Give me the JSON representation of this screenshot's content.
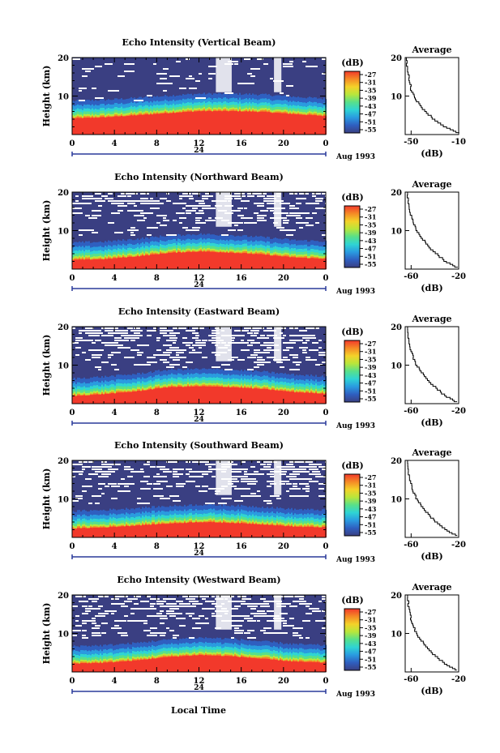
{
  "figure": {
    "bottom_label": "Local Time",
    "colorbar_unit": "(dB)",
    "colorbar_ticks": [
      "-27",
      "-31",
      "-35",
      "-39",
      "-43",
      "-47",
      "-51",
      "-55"
    ],
    "date_label": "Aug 1993",
    "day_label": "24",
    "avg_title": "Average",
    "avg_xlabel": "(dB)",
    "colors": {
      "background_noise": "#3a3f82",
      "surface_layer": "#f2392b",
      "gap": "#ffffff",
      "colormap": [
        "#3a3f82",
        "#2f5fc0",
        "#2a9be0",
        "#2fd4d4",
        "#58e08a",
        "#b8e63b",
        "#f4d229",
        "#f58a26",
        "#f2392b"
      ]
    }
  },
  "chart_data": [
    {
      "type": "heatmap",
      "title": "Echo Intensity (Vertical Beam)",
      "ylabel": "Height (km)",
      "xlabel": "Local Time",
      "x_ticks": [
        "0",
        "4",
        "8",
        "12",
        "16",
        "20",
        "0"
      ],
      "y_ticks": [
        "20",
        "10"
      ],
      "xlim": [
        0,
        24
      ],
      "ylim": [
        0,
        20
      ],
      "colorbar_range_db": [
        -55,
        -27
      ],
      "surface_layer_top_km": [
        4.2,
        4.5,
        5.0,
        5.6,
        6.1,
        6.1,
        5.9,
        5.3,
        4.8
      ],
      "average_profile": {
        "title": "Average",
        "xlabel": "(dB)",
        "x_ticks": [
          "-50",
          "-10"
        ],
        "y_ticks": [
          "20",
          "10"
        ],
        "xlim": [
          -55,
          -10
        ],
        "ylim": [
          0,
          20
        ],
        "height_km": [
          20,
          17,
          14,
          12,
          10,
          8,
          6,
          4,
          2,
          0.5
        ],
        "db": [
          -54,
          -53,
          -51,
          -50,
          -47,
          -43,
          -37,
          -30,
          -20,
          -10
        ]
      }
    },
    {
      "type": "heatmap",
      "title": "Echo Intensity (Northward Beam)",
      "ylabel": "Height (km)",
      "xlabel": "Local Time",
      "x_ticks": [
        "0",
        "4",
        "8",
        "12",
        "16",
        "20",
        "0"
      ],
      "y_ticks": [
        "20",
        "10"
      ],
      "xlim": [
        0,
        24
      ],
      "ylim": [
        0,
        20
      ],
      "colorbar_range_db": [
        -55,
        -27
      ],
      "surface_layer_top_km": [
        2.4,
        2.6,
        3.3,
        4.2,
        4.6,
        4.3,
        3.8,
        3.0,
        2.7
      ],
      "average_profile": {
        "title": "Average",
        "xlabel": "(dB)",
        "x_ticks": [
          "-60",
          "-20"
        ],
        "y_ticks": [
          "20",
          "10"
        ],
        "xlim": [
          -65,
          -20
        ],
        "ylim": [
          0,
          20
        ],
        "height_km": [
          20,
          17,
          14,
          12,
          10,
          8,
          6,
          4,
          2,
          0.5
        ],
        "db": [
          -63,
          -62,
          -60,
          -58,
          -55,
          -50,
          -45,
          -38,
          -30,
          -21
        ]
      }
    },
    {
      "type": "heatmap",
      "title": "Echo Intensity (Eastward Beam)",
      "ylabel": "Height (km)",
      "xlabel": "Local Time",
      "x_ticks": [
        "0",
        "4",
        "8",
        "12",
        "16",
        "20",
        "0"
      ],
      "y_ticks": [
        "20",
        "10"
      ],
      "xlim": [
        0,
        24
      ],
      "ylim": [
        0,
        20
      ],
      "colorbar_range_db": [
        -55,
        -27
      ],
      "surface_layer_top_km": [
        2.0,
        2.5,
        3.2,
        4.3,
        4.5,
        4.3,
        3.8,
        3.0,
        2.6
      ],
      "average_profile": {
        "title": "Average",
        "xlabel": "(dB)",
        "x_ticks": [
          "-60",
          "-20"
        ],
        "y_ticks": [
          "20",
          "10"
        ],
        "xlim": [
          -65,
          -20
        ],
        "ylim": [
          0,
          20
        ],
        "height_km": [
          20,
          17,
          14,
          12,
          10,
          8,
          6,
          4,
          2,
          0.5
        ],
        "db": [
          -63,
          -62,
          -60,
          -58,
          -55,
          -50,
          -45,
          -38,
          -30,
          -21
        ]
      }
    },
    {
      "type": "heatmap",
      "title": "Echo Intensity (Southward Beam)",
      "ylabel": "Height (km)",
      "xlabel": "Local Time",
      "x_ticks": [
        "0",
        "4",
        "8",
        "12",
        "16",
        "20",
        "0"
      ],
      "y_ticks": [
        "20",
        "10"
      ],
      "xlim": [
        0,
        24
      ],
      "ylim": [
        0,
        20
      ],
      "colorbar_range_db": [
        -55,
        -27
      ],
      "surface_layer_top_km": [
        2.3,
        2.6,
        3.1,
        3.6,
        4.0,
        3.8,
        3.4,
        2.8,
        2.6
      ],
      "average_profile": {
        "title": "Average",
        "xlabel": "(dB)",
        "x_ticks": [
          "-60",
          "-20"
        ],
        "y_ticks": [
          "20",
          "10"
        ],
        "xlim": [
          -65,
          -20
        ],
        "ylim": [
          0,
          20
        ],
        "height_km": [
          20,
          17,
          14,
          12,
          10,
          8,
          6,
          4,
          2,
          0.5
        ],
        "db": [
          -63,
          -62,
          -60,
          -58,
          -55,
          -50,
          -45,
          -38,
          -30,
          -21
        ]
      }
    },
    {
      "type": "heatmap",
      "title": "Echo Intensity (Westward Beam)",
      "ylabel": "Height (km)",
      "xlabel": "Local Time",
      "x_ticks": [
        "0",
        "4",
        "8",
        "12",
        "16",
        "20",
        "0"
      ],
      "y_ticks": [
        "20",
        "10"
      ],
      "xlim": [
        0,
        24
      ],
      "ylim": [
        0,
        20
      ],
      "colorbar_range_db": [
        -55,
        -27
      ],
      "surface_layer_top_km": [
        2.2,
        2.4,
        3.0,
        3.9,
        4.4,
        4.1,
        3.4,
        2.7,
        2.4
      ],
      "average_profile": {
        "title": "Average",
        "xlabel": "(dB)",
        "x_ticks": [
          "-60",
          "-20"
        ],
        "y_ticks": [
          "20",
          "10"
        ],
        "xlim": [
          -65,
          -20
        ],
        "ylim": [
          0,
          20
        ],
        "height_km": [
          20,
          17,
          14,
          12,
          10,
          8,
          6,
          4,
          2,
          0.5
        ],
        "db": [
          -63,
          -62,
          -60,
          -58,
          -55,
          -50,
          -45,
          -38,
          -30,
          -21
        ]
      }
    }
  ]
}
